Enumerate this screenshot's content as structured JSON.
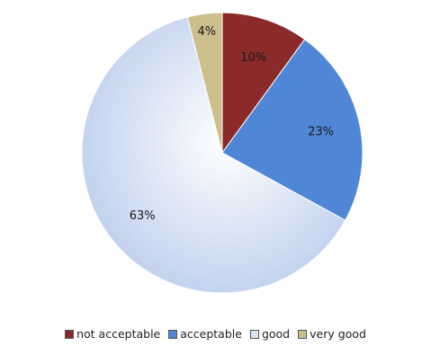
{
  "chart_data": {
    "type": "pie",
    "title": "",
    "categories": [
      "not acceptable",
      "acceptable",
      "good",
      "very good"
    ],
    "values": [
      10,
      23,
      63,
      4
    ],
    "labels": [
      "10%",
      "23%",
      "63%",
      "4%"
    ],
    "colors": [
      "#8b2a2a",
      "#4f86d6",
      "#c7d5ee",
      "#cbbf8e"
    ],
    "legend_position": "bottom",
    "start_angle_deg": 0,
    "direction": "clockwise"
  }
}
